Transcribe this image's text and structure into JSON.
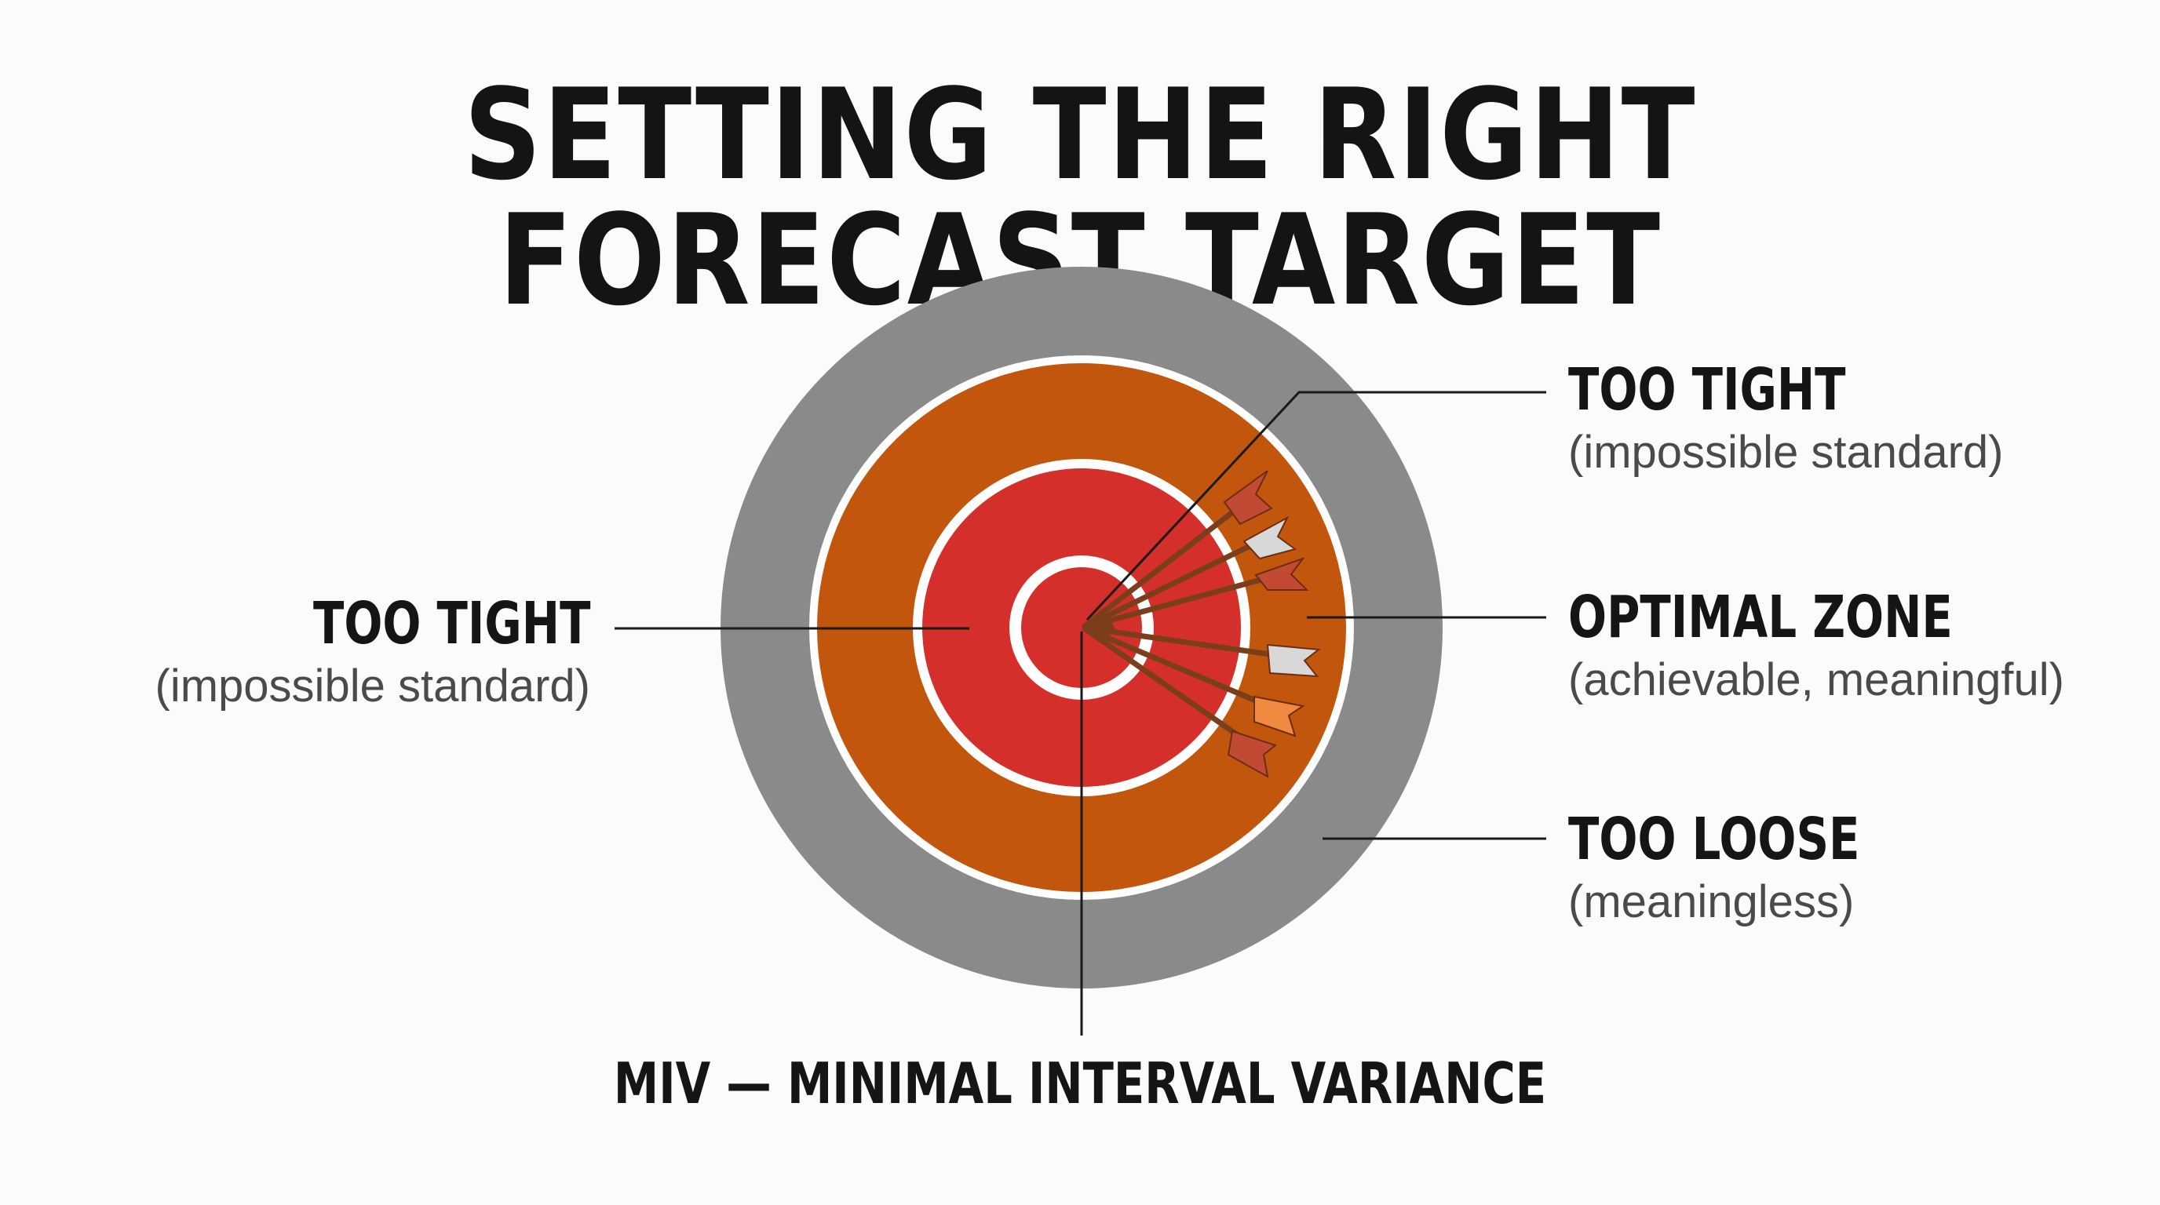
{
  "title": "SETTING THE RIGHT FORECAST TARGET",
  "labels": {
    "top_right": {
      "heading": "TOO TIGHT",
      "sub": "(impossible standard)"
    },
    "middle_right": {
      "heading": "OPTIMAL ZONE",
      "sub": "(achievable, meaningful)"
    },
    "bottom_right": {
      "heading": "TOO LOOSE",
      "sub": "(meaningless)"
    },
    "left": {
      "heading": "TOO TIGHT",
      "sub": "(impossible standard)"
    }
  },
  "bottom_label": "MIV — MINIMAL INTERVAL VARIANCE",
  "colors": {
    "outer_ring": "#8a8a8a",
    "middle_ring": "#c2560c",
    "inner_ring": "#d42f2a",
    "center": "#d42f2a",
    "separator": "#ffffff",
    "arrow_shaft": "#7a3e1c",
    "fletch_red": "#c24a35",
    "fletch_white": "#d8d8d8",
    "fletch_orange": "#f08a40",
    "leader_line": "#1a1a1a"
  },
  "icons": [
    "target-icon",
    "arrow-icon"
  ]
}
